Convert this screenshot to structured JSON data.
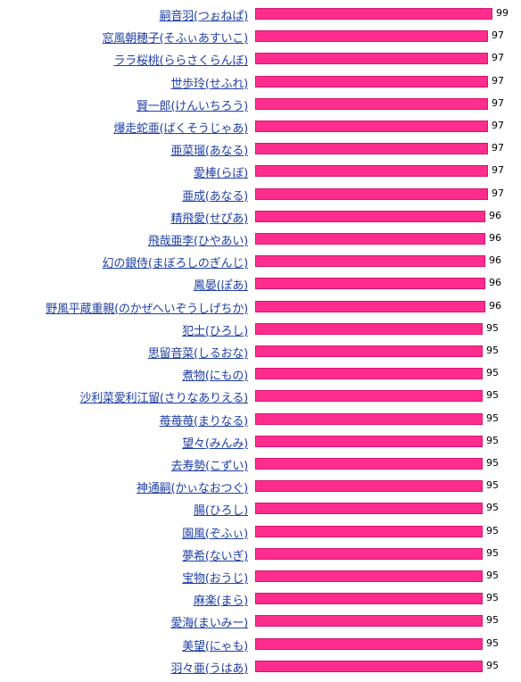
{
  "colors": {
    "bar": "#ff2d8d",
    "bar_border": "#d8146e",
    "link": "#1f3fa6"
  },
  "chart_data": {
    "type": "bar",
    "orientation": "horizontal",
    "categories": [
      "嗣音羽(つぉねぱ)",
      "窓風朝穂子(そふぃあすいこ)",
      "ララ桜桃(ららさくらんぼ)",
      "世歩玲(せふれ)",
      "賢一郎(けんいちろう)",
      "爆走蛇亜(ばくそうじゃあ)",
      "亜菜瑠(あなる)",
      "愛棒(らぼ)",
      "亜成(あなる)",
      "精飛愛(せぴあ)",
      "飛哉亜李(ひやあい)",
      "幻の銀侍(まぼろしのぎんじ)",
      "鳳晏(ぽあ)",
      "野風平蔵重親(のかぜへいぞうしげちか)",
      "犯士(ひろし)",
      "思留音菜(しるおな)",
      "煮物(にもの)",
      "沙利菜愛利江留(さりなありえる)",
      "苺苺苺(まりなる)",
      "望々(みんみ)",
      "去寿勢(こずい)",
      "神通嗣(かぃなおつぐ)",
      "腸(ひろし)",
      "園風(ぞふぃ)",
      "夢希(ないぎ)",
      "宝物(おうじ)",
      "麻楽(まら)",
      "愛海(まいみー)",
      "美望(にゃも)",
      "羽々亜(うはあ)"
    ],
    "values": [
      99,
      97,
      97,
      97,
      97,
      97,
      97,
      97,
      97,
      96,
      96,
      96,
      96,
      96,
      95,
      95,
      95,
      95,
      95,
      95,
      95,
      95,
      95,
      95,
      95,
      95,
      95,
      95,
      95,
      95
    ]
  }
}
